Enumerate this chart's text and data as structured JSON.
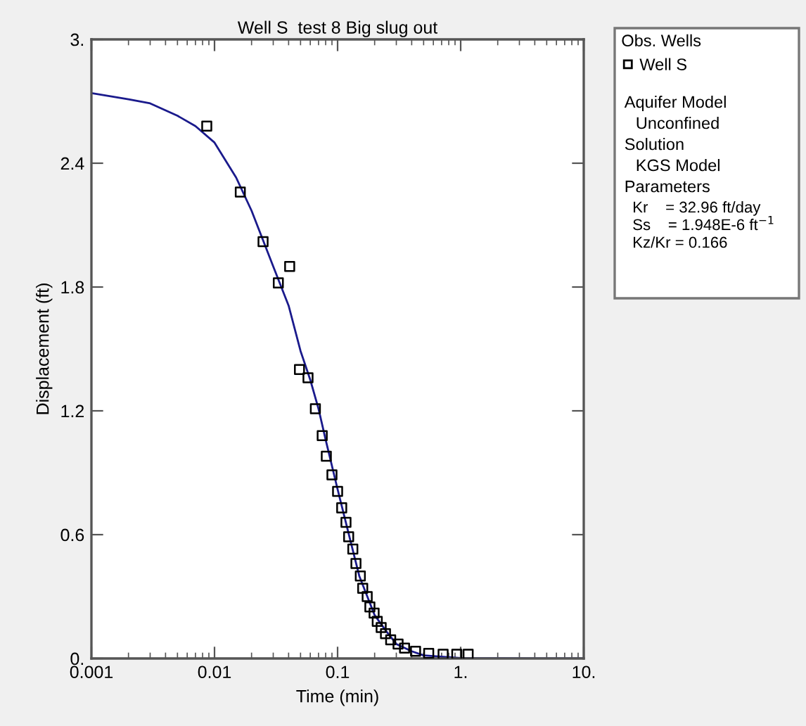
{
  "chart_data": {
    "type": "scatter",
    "title": "Well S  test 8 Big slug out",
    "xlabel": "Time (min)",
    "ylabel": "Displacement (ft)",
    "legend_title": "Obs. Wells",
    "log": "x",
    "grid": false,
    "legend": "right",
    "xlim": [
      0.001,
      10
    ],
    "xticks": [
      {
        "value": 0.001,
        "label": "0.001"
      },
      {
        "value": 0.01,
        "label": "0.01"
      },
      {
        "value": 0.1,
        "label": "0.1"
      },
      {
        "value": 1,
        "label": "1."
      },
      {
        "value": 10,
        "label": "10."
      }
    ],
    "ylim": [
      0,
      3
    ],
    "yticks": [
      {
        "value": 0,
        "label": "0."
      },
      {
        "value": 0.6,
        "label": "0.6"
      },
      {
        "value": 1.2,
        "label": "1.2"
      },
      {
        "value": 1.8,
        "label": "1.8"
      },
      {
        "value": 2.4,
        "label": "2.4"
      },
      {
        "value": 3,
        "label": "3."
      }
    ],
    "series": [
      {
        "name": "Well S",
        "color": "#000000",
        "marker": "square",
        "x": [
          0.00865,
          0.0162,
          0.0248,
          0.033,
          0.0408,
          0.049,
          0.0575,
          0.066,
          0.075,
          0.081,
          0.09,
          0.1,
          0.108,
          0.117,
          0.123,
          0.133,
          0.141,
          0.153,
          0.16,
          0.174,
          0.183,
          0.198,
          0.21,
          0.226,
          0.245,
          0.27,
          0.31,
          0.35,
          0.43,
          0.55,
          0.72,
          0.93,
          1.15
        ],
        "values": [
          2.58,
          2.26,
          2.02,
          1.82,
          1.9,
          1.4,
          1.36,
          1.21,
          1.08,
          0.98,
          0.89,
          0.81,
          0.73,
          0.66,
          0.59,
          0.53,
          0.46,
          0.4,
          0.34,
          0.3,
          0.25,
          0.22,
          0.18,
          0.15,
          0.12,
          0.09,
          0.07,
          0.05,
          0.035,
          0.025,
          0.02,
          0.02,
          0.02
        ]
      },
      {
        "type": "line",
        "color": "#1a1a8c",
        "marker": "none",
        "line_style": "solid",
        "x": [
          0.001,
          0.002,
          0.003,
          0.005,
          0.007,
          0.01,
          0.015,
          0.02,
          0.03,
          0.04,
          0.05,
          0.06,
          0.07,
          0.08,
          0.1,
          0.12,
          0.15,
          0.2,
          0.25,
          0.3,
          0.4,
          0.5,
          1,
          10
        ],
        "values": [
          2.74,
          2.71,
          2.69,
          2.63,
          2.58,
          2.5,
          2.33,
          2.17,
          1.9,
          1.71,
          1.49,
          1.35,
          1.21,
          1.06,
          0.82,
          0.63,
          0.4,
          0.21,
          0.13,
          0.07,
          0.035,
          0.015,
          0.002,
          0
        ]
      }
    ],
    "annotations": [
      "Aquifer Model",
      "Unconfined",
      "Solution",
      "KGS Model",
      "Parameters",
      "Kr    = 32.96 ft/day",
      "Ss    = 1.948E-6 ft$^{−1}$",
      "Kz/Kr = 0.166"
    ]
  }
}
